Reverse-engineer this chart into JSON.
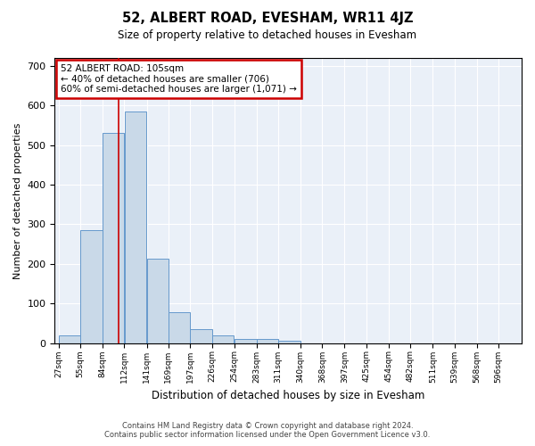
{
  "title": "52, ALBERT ROAD, EVESHAM, WR11 4JZ",
  "subtitle": "Size of property relative to detached houses in Evesham",
  "xlabel": "Distribution of detached houses by size in Evesham",
  "ylabel": "Number of detached properties",
  "footer_line1": "Contains HM Land Registry data © Crown copyright and database right 2024.",
  "footer_line2": "Contains public sector information licensed under the Open Government Licence v3.0.",
  "bin_labels": [
    "27sqm",
    "55sqm",
    "84sqm",
    "112sqm",
    "141sqm",
    "169sqm",
    "197sqm",
    "226sqm",
    "254sqm",
    "283sqm",
    "311sqm",
    "340sqm",
    "368sqm",
    "397sqm",
    "425sqm",
    "454sqm",
    "482sqm",
    "511sqm",
    "539sqm",
    "568sqm",
    "596sqm"
  ],
  "bar_values": [
    20,
    285,
    530,
    585,
    213,
    78,
    35,
    20,
    10,
    10,
    7,
    0,
    0,
    0,
    0,
    0,
    0,
    0,
    0,
    0
  ],
  "bar_color": "#c9d9e8",
  "bar_edge_color": "#6699cc",
  "property_sqm": 105,
  "annotation_title": "52 ALBERT ROAD: 105sqm",
  "annotation_line1": "← 40% of detached houses are smaller (706)",
  "annotation_line2": "60% of semi-detached houses are larger (1,071) →",
  "annotation_box_color": "#ffffff",
  "annotation_border_color": "#cc0000",
  "vline_color": "#cc0000",
  "ylim": [
    0,
    720
  ],
  "yticks": [
    0,
    100,
    200,
    300,
    400,
    500,
    600,
    700
  ],
  "bin_edges": [
    27,
    55,
    84,
    112,
    141,
    169,
    197,
    226,
    254,
    283,
    311,
    340,
    368,
    397,
    425,
    454,
    482,
    511,
    539,
    568,
    596
  ]
}
